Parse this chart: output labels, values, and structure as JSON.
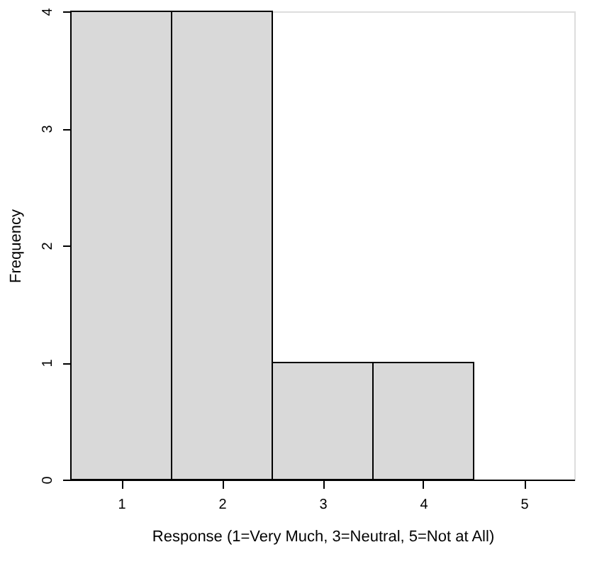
{
  "chart_data": {
    "type": "histogram",
    "xlabel": "Response (1=Very Much, 3=Neutral, 5=Not at All)",
    "ylabel": "Frequency",
    "bins": [
      0.5,
      1.5,
      2.5,
      3.5,
      4.5
    ],
    "values": [
      4,
      4,
      1,
      1
    ],
    "color": "#d9d9d9",
    "xlim": [
      0.5,
      5.5
    ],
    "xticks": [
      1,
      2,
      3,
      4,
      5
    ],
    "ylim": [
      0,
      4
    ],
    "yticks": [
      0,
      1,
      2,
      3,
      4
    ],
    "grid": false
  }
}
